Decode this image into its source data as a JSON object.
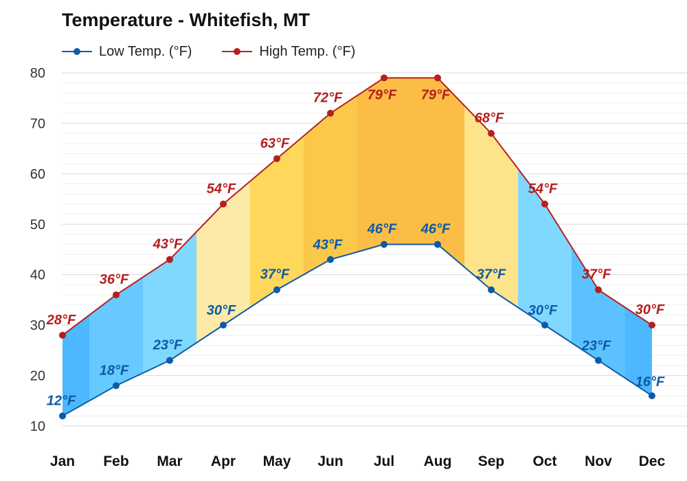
{
  "chart_data": {
    "type": "line",
    "title": "Temperature - Whitefish, MT",
    "categories": [
      "Jan",
      "Feb",
      "Mar",
      "Apr",
      "May",
      "Jun",
      "Jul",
      "Aug",
      "Sep",
      "Oct",
      "Nov",
      "Dec"
    ],
    "series": [
      {
        "name": "Low Temp. (°F)",
        "color": "#0d5aa7",
        "values": [
          12,
          18,
          23,
          30,
          37,
          43,
          46,
          46,
          37,
          30,
          23,
          16
        ]
      },
      {
        "name": "High Temp. (°F)",
        "color": "#b51f1f",
        "values": [
          28,
          36,
          43,
          54,
          63,
          72,
          79,
          79,
          68,
          54,
          37,
          30
        ]
      }
    ],
    "data_labels": {
      "low": [
        "12°F",
        "18°F",
        "23°F",
        "30°F",
        "37°F",
        "43°F",
        "46°F",
        "46°F",
        "37°F",
        "30°F",
        "23°F",
        "16°F"
      ],
      "high": [
        "28°F",
        "36°F",
        "43°F",
        "54°F",
        "63°F",
        "72°F",
        "79°F",
        "79°F",
        "68°F",
        "54°F",
        "37°F",
        "30°F"
      ]
    },
    "y_ticks": [
      "10",
      "20",
      "30",
      "40",
      "50",
      "60",
      "70",
      "80"
    ],
    "ylim": [
      10,
      80
    ],
    "grid": true,
    "legend_position": "top-left",
    "band_colors": [
      "#4db8ff",
      "#66c9ff",
      "#80d8ff",
      "#fde9a8",
      "#fdd85a",
      "#fcc84a",
      "#fbbd45",
      "#fbbd45",
      "#fde38a",
      "#80d8ff",
      "#5cc2ff",
      "#4db8ff"
    ]
  }
}
